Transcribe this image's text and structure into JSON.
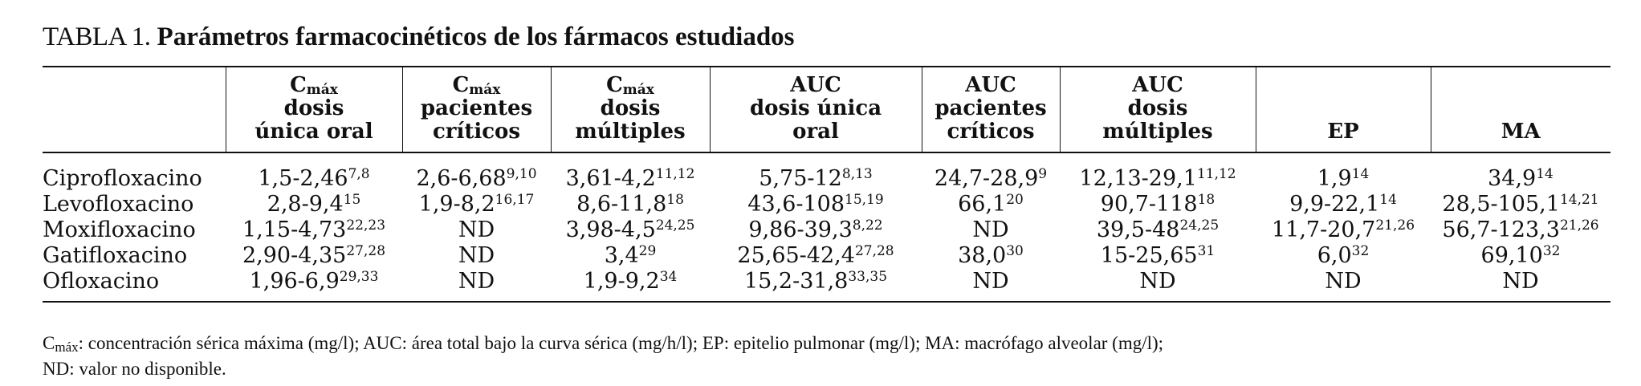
{
  "title": {
    "label": "TABLA 1.",
    "text": "Parámetros farmacocinéticos de los fármacos estudiados"
  },
  "table": {
    "columns": [
      {
        "main": "C",
        "sub": "máx",
        "lines": [
          "dosis",
          "única oral"
        ]
      },
      {
        "main": "C",
        "sub": "máx",
        "lines": [
          "pacientes",
          "críticos"
        ]
      },
      {
        "main": "C",
        "sub": "máx",
        "lines": [
          "dosis",
          "múltiples"
        ]
      },
      {
        "lines": [
          "AUC",
          "dosis única",
          "oral"
        ]
      },
      {
        "lines": [
          "AUC",
          "pacientes",
          "críticos"
        ]
      },
      {
        "lines": [
          "AUC",
          "dosis",
          "múltiples"
        ]
      },
      {
        "lines": [
          "EP"
        ]
      },
      {
        "lines": [
          "MA"
        ]
      }
    ],
    "rows": [
      {
        "name": "Ciprofloxacino",
        "cells": [
          {
            "value": "1,5-2,46",
            "ref": "7,8"
          },
          {
            "value": "2,6-6,68",
            "ref": "9,10"
          },
          {
            "value": "3,61-4,2",
            "ref": "11,12"
          },
          {
            "value": "5,75-12",
            "ref": "8,13"
          },
          {
            "value": "24,7-28,9",
            "ref": "9"
          },
          {
            "value": "12,13-29,1",
            "ref": "11,12"
          },
          {
            "value": "1,9",
            "ref": "14"
          },
          {
            "value": "34,9",
            "ref": "14"
          }
        ]
      },
      {
        "name": "Levofloxacino",
        "cells": [
          {
            "value": "2,8-9,4",
            "ref": "15"
          },
          {
            "value": "1,9-8,2",
            "ref": "16,17"
          },
          {
            "value": "8,6-11,8",
            "ref": "18"
          },
          {
            "value": "43,6-108",
            "ref": "15,19"
          },
          {
            "value": "66,1",
            "ref": "20"
          },
          {
            "value": "90,7-118",
            "ref": "18"
          },
          {
            "value": "9,9-22,1",
            "ref": "14"
          },
          {
            "value": "28,5-105,1",
            "ref": "14,21"
          }
        ]
      },
      {
        "name": "Moxifloxacino",
        "cells": [
          {
            "value": "1,15-4,73",
            "ref": "22,23"
          },
          {
            "value": "ND"
          },
          {
            "value": "3,98-4,5",
            "ref": "24,25"
          },
          {
            "value": "9,86-39,3",
            "ref": "8,22"
          },
          {
            "value": "ND"
          },
          {
            "value": "39,5-48",
            "ref": "24,25"
          },
          {
            "value": "11,7-20,7",
            "ref": "21,26"
          },
          {
            "value": "56,7-123,3",
            "ref": "21,26"
          }
        ]
      },
      {
        "name": "Gatifloxacino",
        "cells": [
          {
            "value": "2,90-4,35",
            "ref": "27,28"
          },
          {
            "value": "ND"
          },
          {
            "value": "3,4",
            "ref": "29"
          },
          {
            "value": "25,65-42,4",
            "ref": "27,28"
          },
          {
            "value": "38,0",
            "ref": "30"
          },
          {
            "value": "15-25,65",
            "ref": "31"
          },
          {
            "value": "6,0",
            "ref": "32"
          },
          {
            "value": "69,10",
            "ref": "32"
          }
        ]
      },
      {
        "name": "Ofloxacino",
        "cells": [
          {
            "value": "1,96-6,9",
            "ref": "29,33"
          },
          {
            "value": "ND"
          },
          {
            "value": "1,9-9,2",
            "ref": "34"
          },
          {
            "value": "15,2-31,8",
            "ref": "33,35"
          },
          {
            "value": "ND"
          },
          {
            "value": "ND"
          },
          {
            "value": "ND"
          },
          {
            "value": "ND"
          }
        ]
      }
    ]
  },
  "footnote": {
    "symbol": "C",
    "sub": "máx",
    "text": ": concentración sérica máxima (mg/l); AUC: área total bajo la curva sérica (mg/h/l); EP: epitelio pulmonar (mg/l); MA: macrófago alveolar (mg/l);",
    "line2": "ND: valor no disponible."
  }
}
